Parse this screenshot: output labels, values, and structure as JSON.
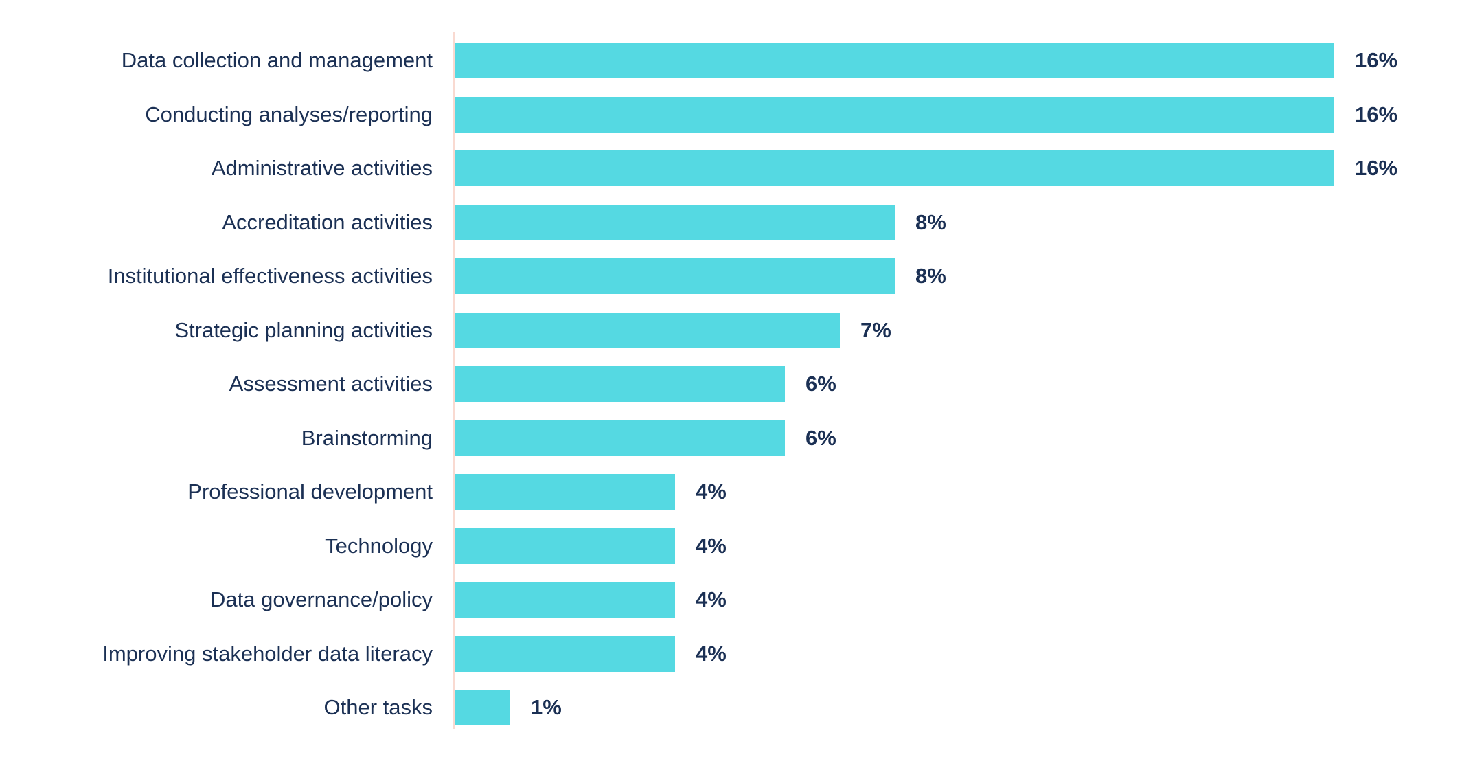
{
  "chart_data": {
    "type": "bar",
    "orientation": "horizontal",
    "title": "",
    "xlabel": "",
    "ylabel": "",
    "grid": false,
    "legend": false,
    "xlim": [
      0,
      16
    ],
    "value_suffix": "%",
    "categories": [
      "Data collection and management",
      "Conducting analyses/reporting",
      "Administrative activities",
      "Accreditation activities",
      "Institutional effectiveness activities",
      "Strategic planning activities",
      "Assessment activities",
      "Brainstorming",
      "Professional development",
      "Technology",
      "Data governance/policy",
      "Improving stakeholder data literacy",
      "Other tasks"
    ],
    "values": [
      16,
      16,
      16,
      8,
      8,
      7,
      6,
      6,
      4,
      4,
      4,
      4,
      1
    ],
    "data_labels": [
      "16%",
      "16%",
      "16%",
      "8%",
      "8%",
      "7%",
      "6%",
      "6%",
      "4%",
      "4%",
      "4%",
      "4%",
      "1%"
    ],
    "colors": {
      "bar": "#55D9E2",
      "text": "#1B3054",
      "axis_line": "#F9DAD1",
      "background": "#FFFFFF"
    }
  }
}
